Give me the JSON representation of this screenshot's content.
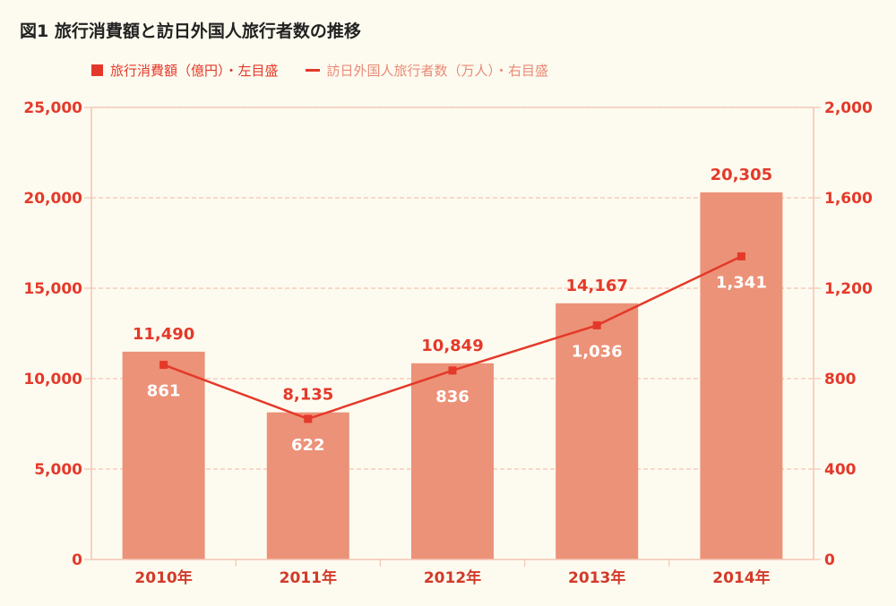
{
  "title": "図1 旅行消費額と訪日外国人旅行者数の推移",
  "legend": {
    "bar_label": "旅行消費額（億円）・左目盛",
    "line_label": "訪日外国人旅行者数（万人）・右目盛"
  },
  "colors": {
    "bar": "#ec9278",
    "line": "#e4392a",
    "grid": "#f4c4b4",
    "text": "#e4392a",
    "background": "#fdfbef"
  },
  "chart_data": {
    "type": "bar+line",
    "title": "図1 旅行消費額と訪日外国人旅行者数の推移",
    "categories": [
      "2010年",
      "2011年",
      "2012年",
      "2013年",
      "2014年"
    ],
    "series": [
      {
        "name": "旅行消費額（億円）・左目盛",
        "type": "bar",
        "axis": "left",
        "values": [
          11490,
          8135,
          10849,
          14167,
          20305
        ],
        "labels": [
          "11,490",
          "8,135",
          "10,849",
          "14,167",
          "20,305"
        ]
      },
      {
        "name": "訪日外国人旅行者数（万人）・右目盛",
        "type": "line",
        "axis": "right",
        "values": [
          861,
          622,
          836,
          1036,
          1341
        ],
        "labels": [
          "861",
          "622",
          "836",
          "1,036",
          "1,341"
        ]
      }
    ],
    "y_left": {
      "lim": [
        0,
        25000
      ],
      "ticks": [
        0,
        5000,
        10000,
        15000,
        20000,
        25000
      ],
      "tick_labels": [
        "0",
        "5,000",
        "10,000",
        "15,000",
        "20,000",
        "25,000"
      ]
    },
    "y_right": {
      "lim": [
        0,
        2000
      ],
      "ticks": [
        0,
        400,
        800,
        1200,
        1600,
        2000
      ],
      "tick_labels": [
        "0",
        "400",
        "800",
        "1,200",
        "1,600",
        "2,000"
      ]
    },
    "grid": true,
    "legend_position": "top-left"
  }
}
